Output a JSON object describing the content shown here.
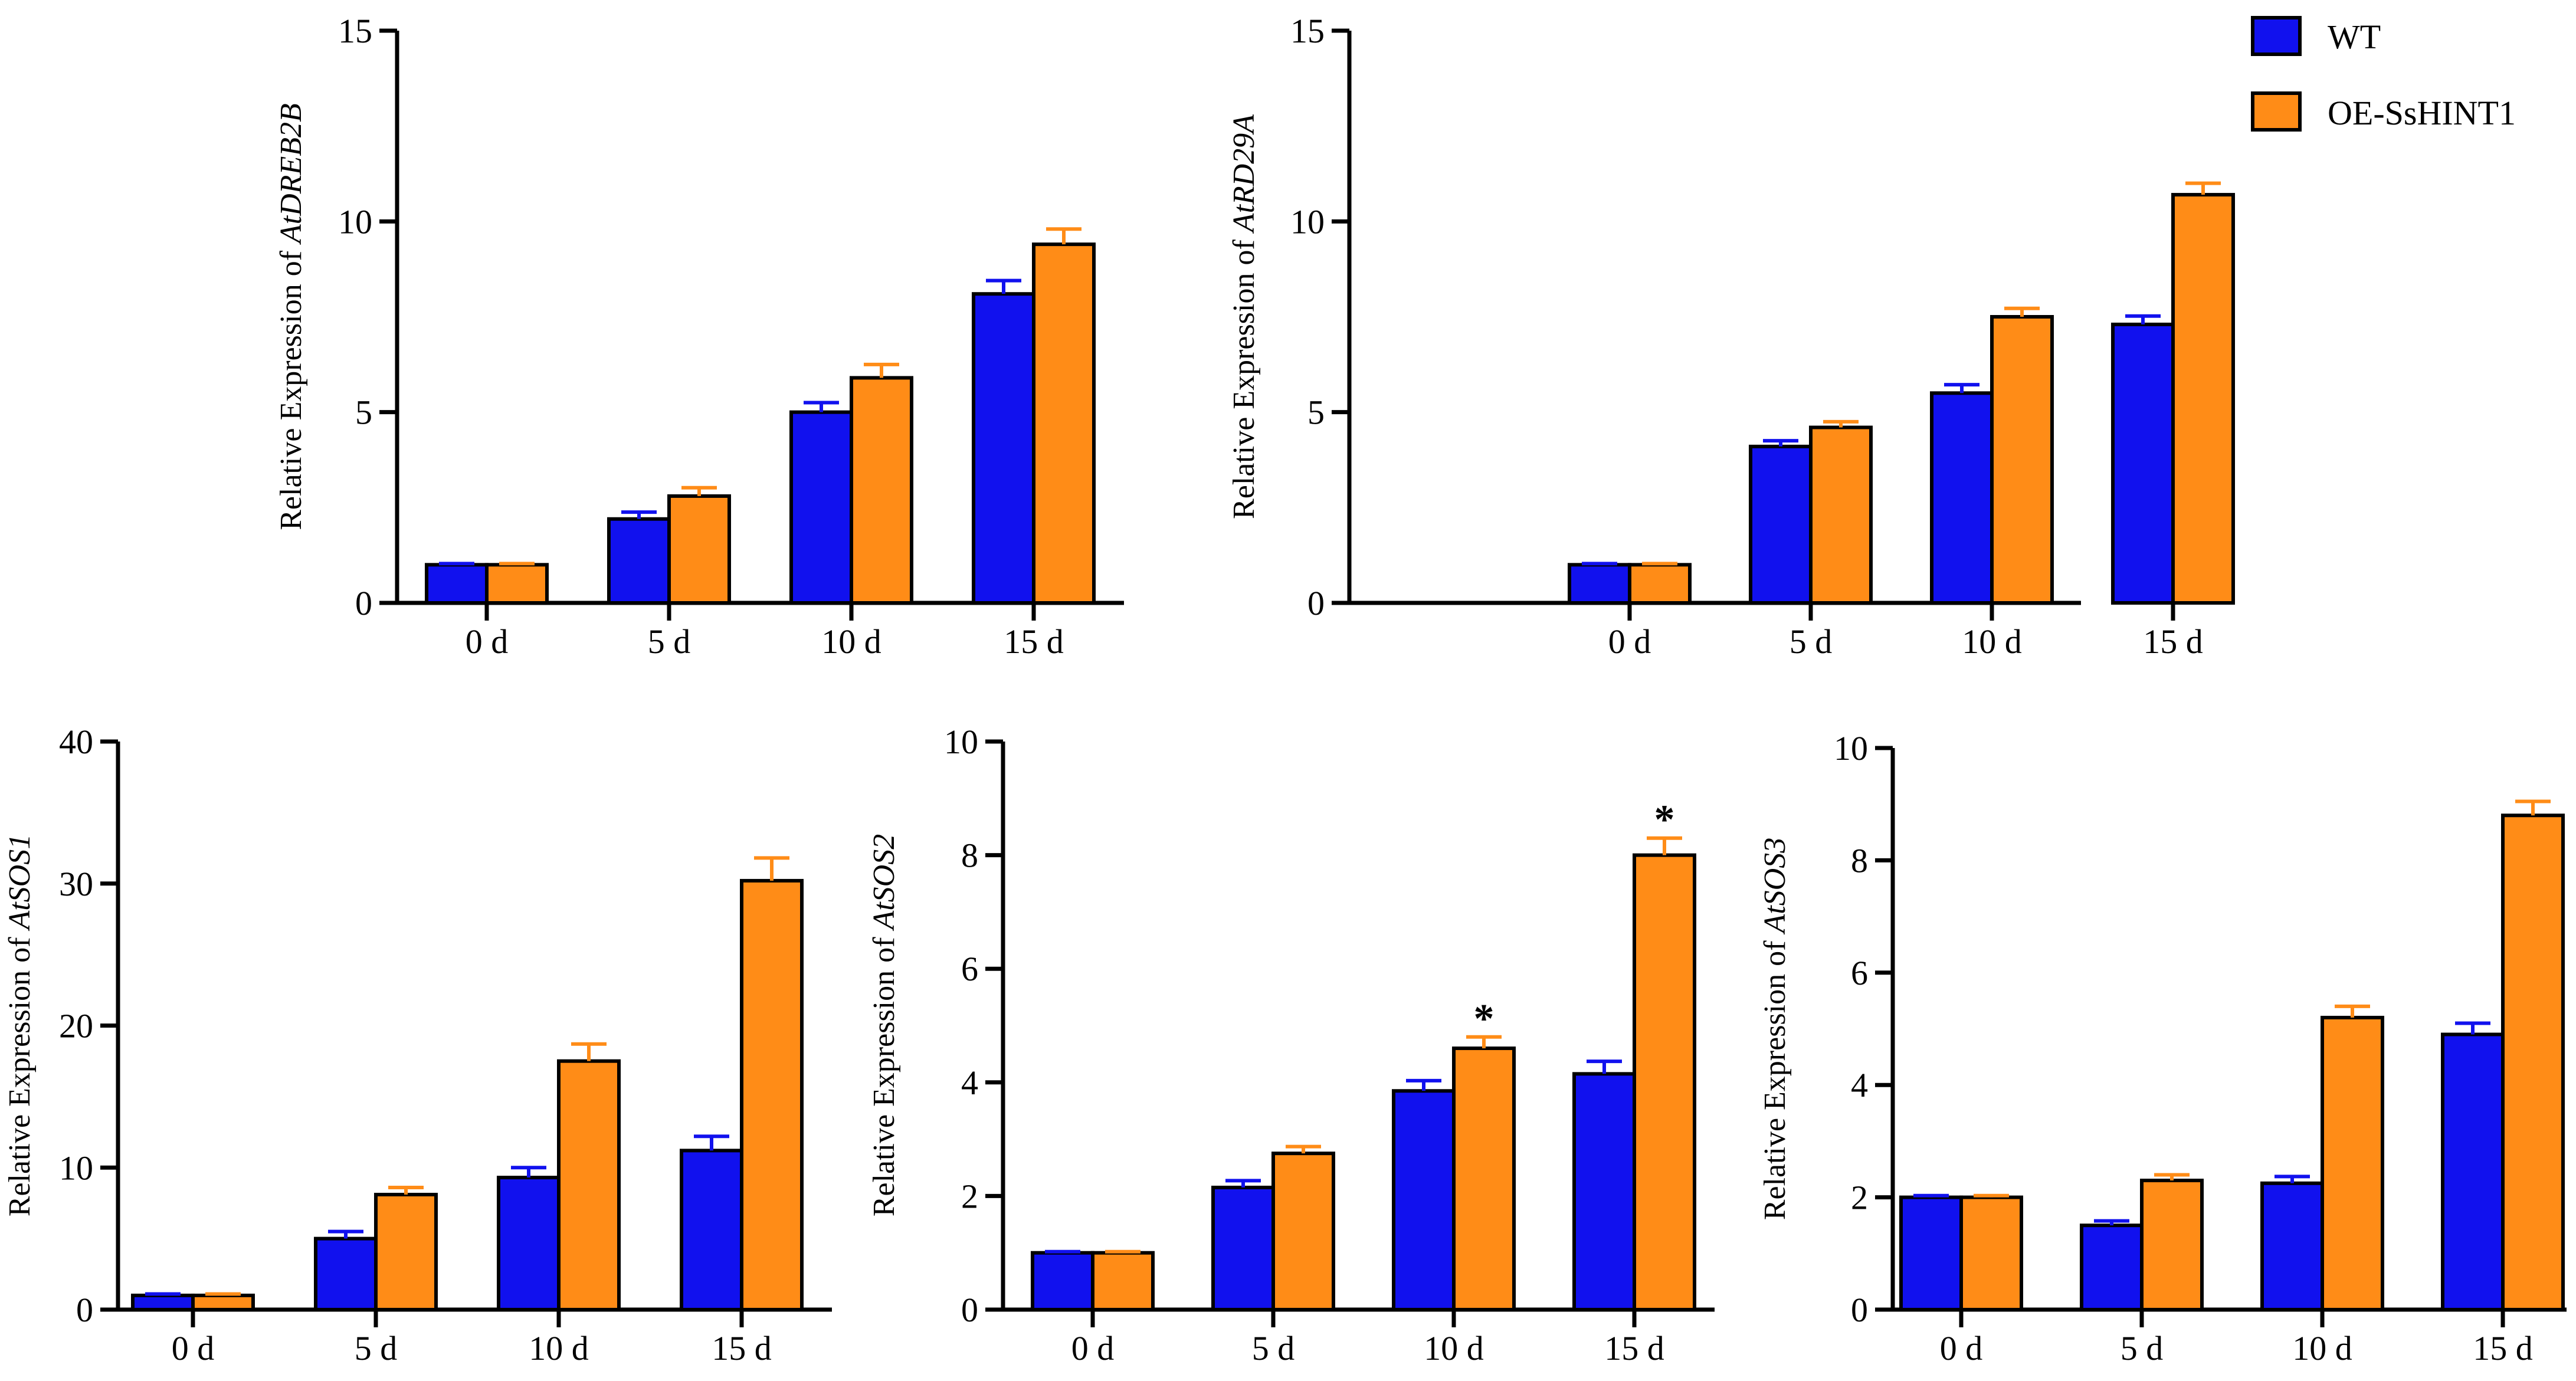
{
  "legend": {
    "series": [
      {
        "name": "WT",
        "color": "#1111ee"
      },
      {
        "name": "OE-SsHINT1",
        "color": "#ff8c17"
      }
    ]
  },
  "chart_data": [
    {
      "type": "bar",
      "ylabel_prefix": "Relative Expression of",
      "gene": "AtDREB2B",
      "categories": [
        "0 d",
        "5 d",
        "10 d",
        "15 d"
      ],
      "ylim": [
        0,
        15
      ],
      "yticks": [
        0,
        5,
        10,
        15
      ],
      "series": [
        {
          "name": "WT",
          "values": [
            1.0,
            2.2,
            5.0,
            8.1
          ],
          "errors": [
            0.03,
            0.18,
            0.25,
            0.35
          ]
        },
        {
          "name": "OE-SsHINT1",
          "values": [
            1.0,
            2.8,
            5.9,
            9.4
          ],
          "errors": [
            0.03,
            0.22,
            0.35,
            0.4
          ]
        }
      ],
      "significance": [
        null,
        null,
        null,
        null
      ]
    },
    {
      "type": "bar",
      "ylabel_prefix": "Relative Expression of",
      "gene": "AtRD29A",
      "categories": [
        "0 d",
        "5 d",
        "10 d",
        "15 d"
      ],
      "ylim": [
        0,
        15
      ],
      "yticks": [
        0,
        5,
        10,
        15
      ],
      "series": [
        {
          "name": "WT",
          "values": [
            1.0,
            4.1,
            5.5,
            7.3
          ],
          "errors": [
            0.03,
            0.15,
            0.22,
            0.22
          ]
        },
        {
          "name": "OE-SsHINT1",
          "values": [
            1.0,
            4.6,
            7.5,
            10.7
          ],
          "errors": [
            0.03,
            0.15,
            0.22,
            0.3
          ]
        }
      ],
      "significance": [
        null,
        null,
        null,
        null
      ]
    },
    {
      "type": "bar",
      "ylabel_prefix": "Relative Expression of",
      "gene": "AtSOS1",
      "categories": [
        "0 d",
        "5 d",
        "10 d",
        "15 d"
      ],
      "ylim": [
        0,
        40
      ],
      "yticks": [
        0,
        10,
        20,
        30,
        40
      ],
      "series": [
        {
          "name": "WT",
          "values": [
            1.0,
            5.0,
            9.3,
            11.2
          ],
          "errors": [
            0.1,
            0.5,
            0.7,
            1.0
          ]
        },
        {
          "name": "OE-SsHINT1",
          "values": [
            1.0,
            8.1,
            17.5,
            30.2
          ],
          "errors": [
            0.1,
            0.5,
            1.2,
            1.6
          ]
        }
      ],
      "significance": [
        null,
        null,
        null,
        null
      ]
    },
    {
      "type": "bar",
      "ylabel_prefix": "Relative Expression of",
      "gene": "AtSOS2",
      "categories": [
        "0 d",
        "5 d",
        "10 d",
        "15 d"
      ],
      "ylim": [
        0,
        10
      ],
      "yticks": [
        0,
        2,
        4,
        6,
        8,
        10
      ],
      "series": [
        {
          "name": "WT",
          "values": [
            1.0,
            2.15,
            3.85,
            4.15
          ],
          "errors": [
            0.02,
            0.12,
            0.18,
            0.22
          ]
        },
        {
          "name": "OE-SsHINT1",
          "values": [
            1.0,
            2.75,
            4.6,
            8.0
          ],
          "errors": [
            0.02,
            0.12,
            0.2,
            0.3
          ]
        }
      ],
      "significance": [
        "",
        "",
        "*",
        "*"
      ]
    },
    {
      "type": "bar",
      "ylabel_prefix": "Relative Expression of",
      "gene": "AtSOS3",
      "categories": [
        "0 d",
        "5 d",
        "10 d",
        "15 d"
      ],
      "ylim": [
        0,
        10
      ],
      "yticks": [
        0,
        2,
        4,
        6,
        8,
        10
      ],
      "series": [
        {
          "name": "WT",
          "values": [
            2.0,
            1.5,
            2.25,
            4.9
          ],
          "errors": [
            0.03,
            0.08,
            0.12,
            0.2
          ]
        },
        {
          "name": "OE-SsHINT1",
          "values": [
            2.0,
            2.3,
            5.2,
            8.8
          ],
          "errors": [
            0.03,
            0.1,
            0.2,
            0.25
          ]
        }
      ],
      "significance": [
        null,
        null,
        null,
        null
      ]
    }
  ]
}
